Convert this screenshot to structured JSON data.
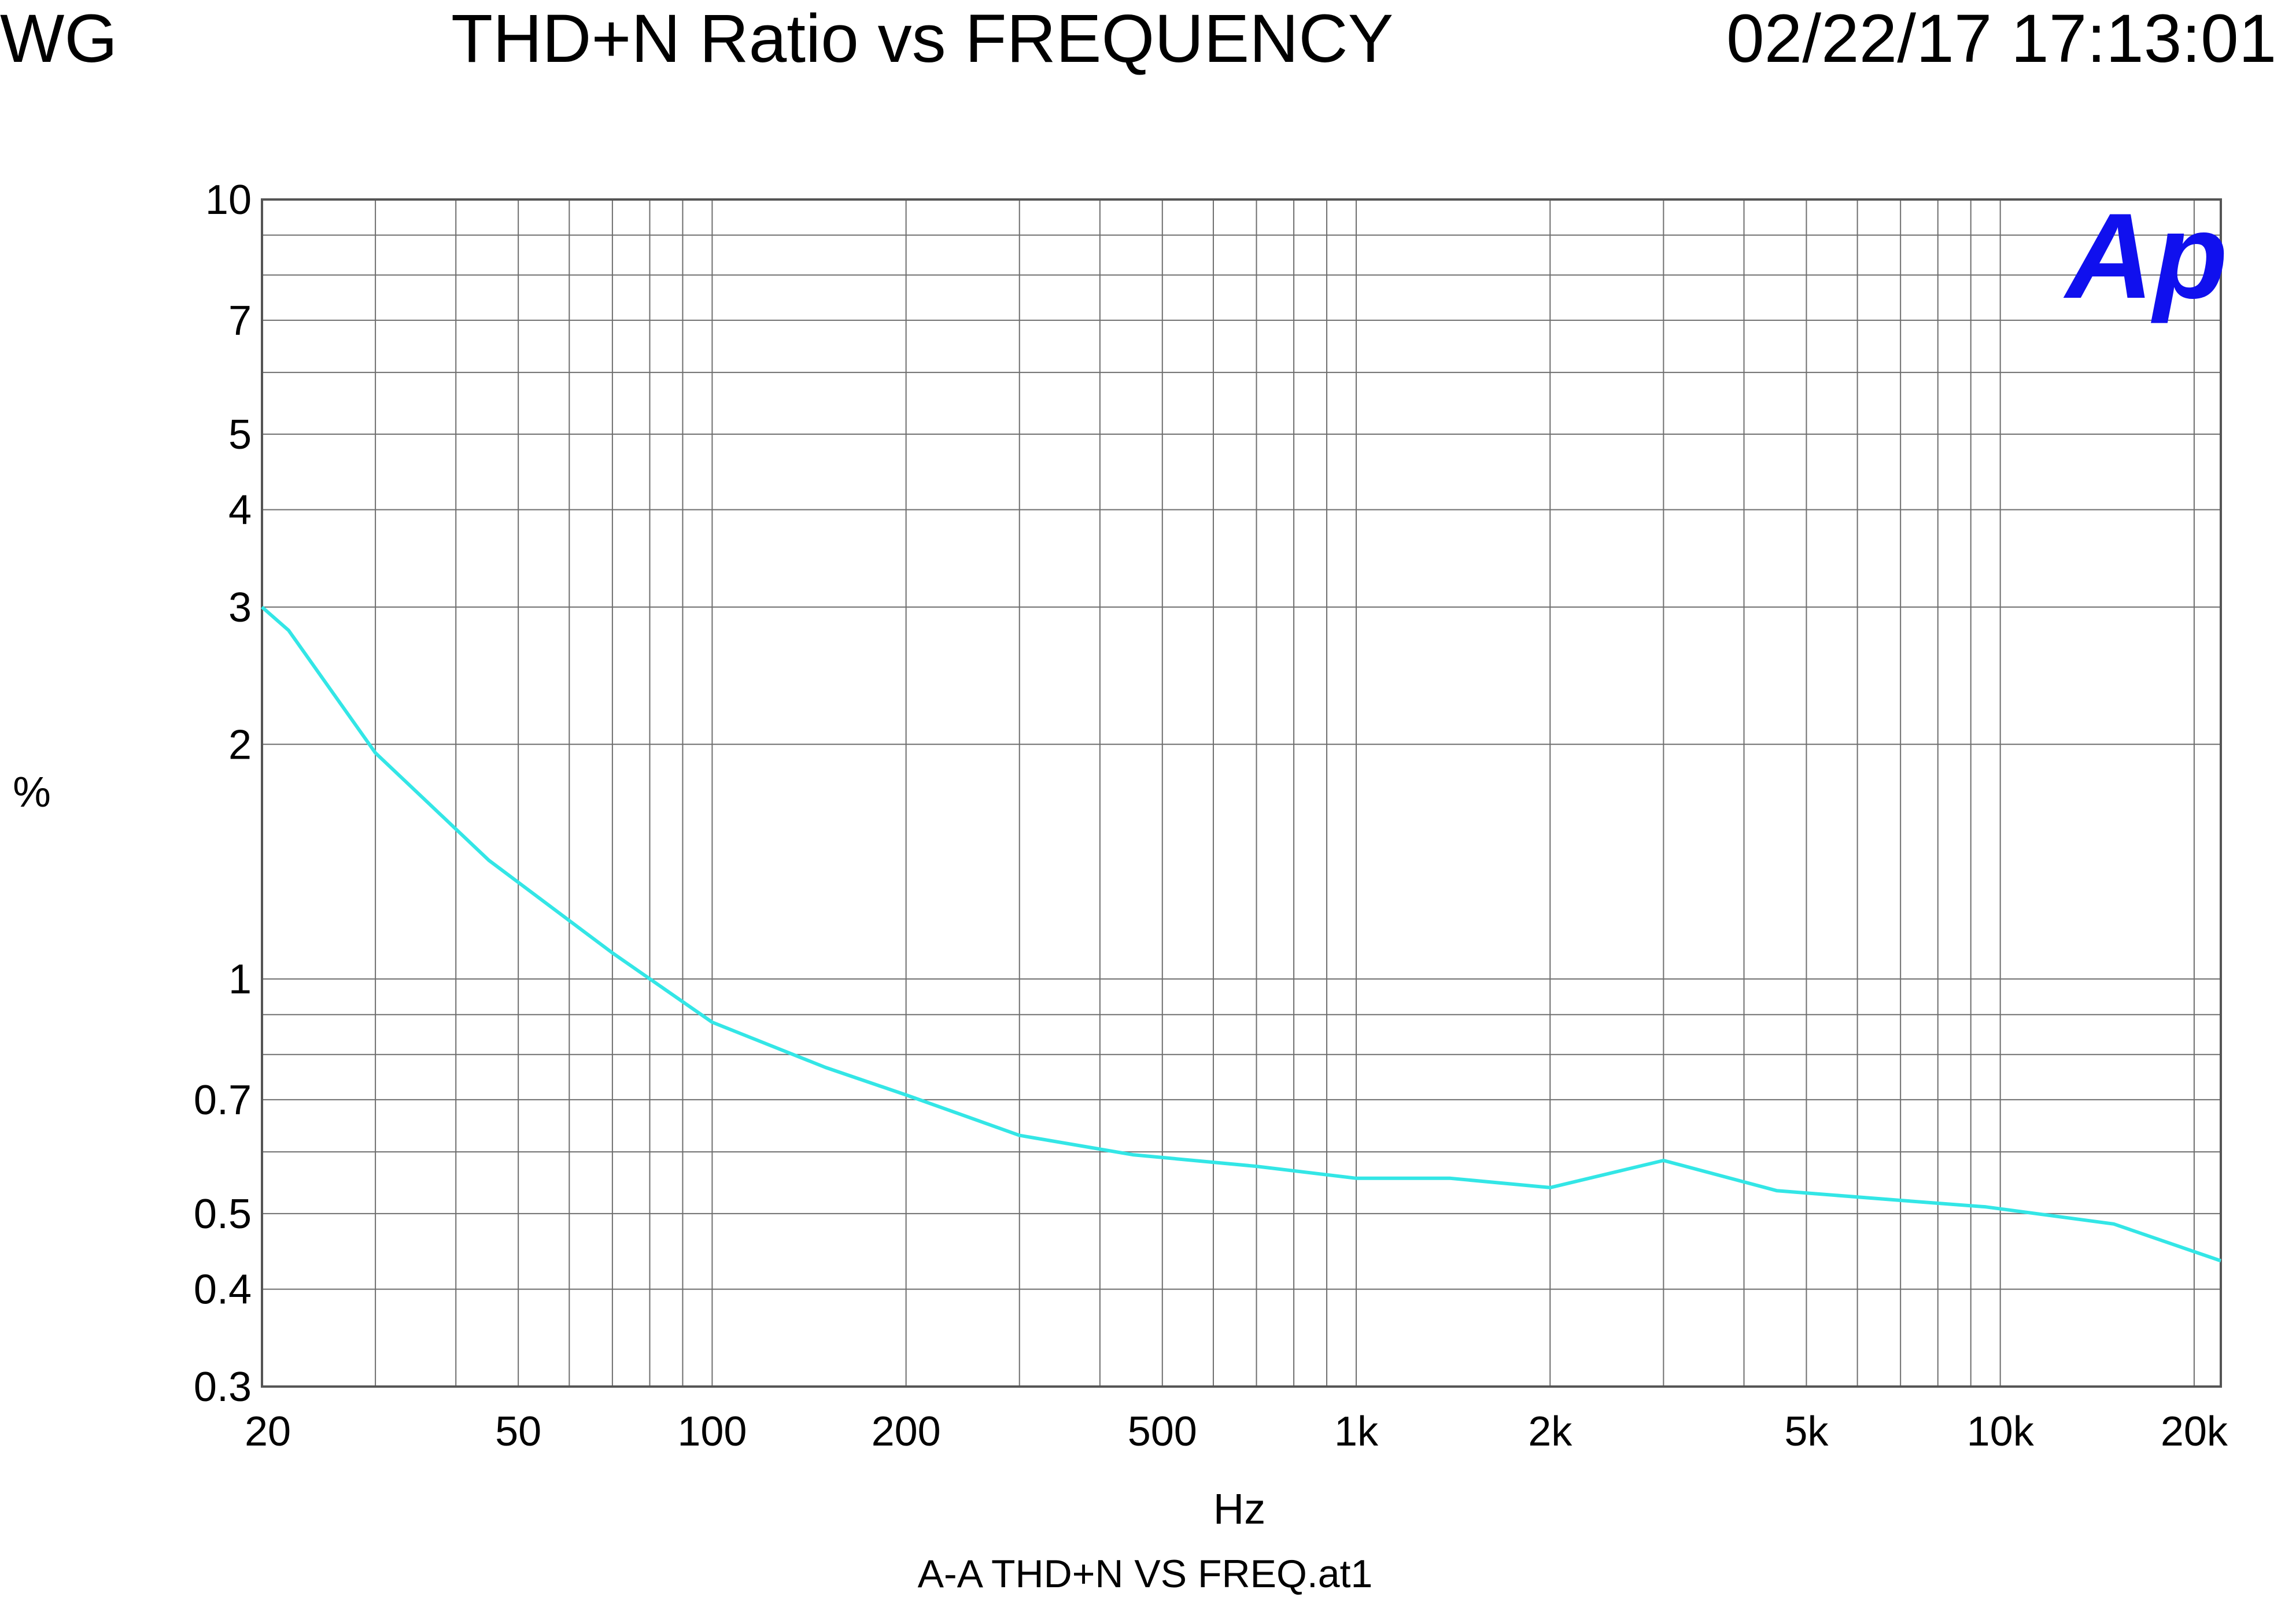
{
  "header": {
    "left_label": "WG",
    "title": "THD+N Ratio vs FREQUENCY",
    "timestamp": "02/22/17 17:13:01"
  },
  "logo_text": "Ap",
  "footer": "A-A THD+N VS FREQ.at1",
  "colors": {
    "trace": "#33e6e6",
    "grid": "#6e6e6e",
    "logo": "#1010ee"
  },
  "chart_data": {
    "type": "line",
    "xlabel": "Hz",
    "ylabel": "%",
    "xscale": "log",
    "yscale": "log",
    "xlim": [
      20,
      22000
    ],
    "ylim": [
      0.3,
      10
    ],
    "grid": true,
    "x_tick_labels": [
      {
        "value": 20,
        "label": "20"
      },
      {
        "value": 50,
        "label": "50"
      },
      {
        "value": 100,
        "label": "100"
      },
      {
        "value": 200,
        "label": "200"
      },
      {
        "value": 500,
        "label": "500"
      },
      {
        "value": 1000,
        "label": "1k"
      },
      {
        "value": 2000,
        "label": "2k"
      },
      {
        "value": 5000,
        "label": "5k"
      },
      {
        "value": 10000,
        "label": "10k"
      },
      {
        "value": 20000,
        "label": "20k"
      }
    ],
    "y_tick_labels": [
      {
        "value": 10,
        "label": "10"
      },
      {
        "value": 7,
        "label": "7"
      },
      {
        "value": 5,
        "label": "5"
      },
      {
        "value": 4,
        "label": "4"
      },
      {
        "value": 3,
        "label": "3"
      },
      {
        "value": 2,
        "label": "2"
      },
      {
        "value": 1,
        "label": "1"
      },
      {
        "value": 0.7,
        "label": "0.7"
      },
      {
        "value": 0.5,
        "label": "0.5"
      },
      {
        "value": 0.4,
        "label": "0.4"
      },
      {
        "value": 0.3,
        "label": "0.3"
      }
    ],
    "x_grid": [
      20,
      30,
      40,
      50,
      60,
      70,
      80,
      90,
      100,
      200,
      300,
      400,
      500,
      600,
      700,
      800,
      900,
      1000,
      2000,
      3000,
      4000,
      5000,
      6000,
      7000,
      8000,
      9000,
      10000,
      20000,
      22000
    ],
    "y_grid": [
      0.3,
      0.4,
      0.5,
      0.6,
      0.7,
      0.8,
      0.9,
      1,
      2,
      3,
      4,
      5,
      6,
      7,
      8,
      9,
      10
    ],
    "series": [
      {
        "x": [
          20,
          22,
          30,
          45,
          70,
          100,
          150,
          200,
          300,
          450,
          700,
          1000,
          1400,
          2000,
          3000,
          4500,
          7000,
          9500,
          15000,
          22000
        ],
        "y": [
          3.0,
          2.8,
          1.95,
          1.42,
          1.08,
          0.88,
          0.77,
          0.71,
          0.63,
          0.595,
          0.575,
          0.555,
          0.555,
          0.54,
          0.585,
          0.535,
          0.52,
          0.51,
          0.485,
          0.435
        ]
      }
    ]
  }
}
